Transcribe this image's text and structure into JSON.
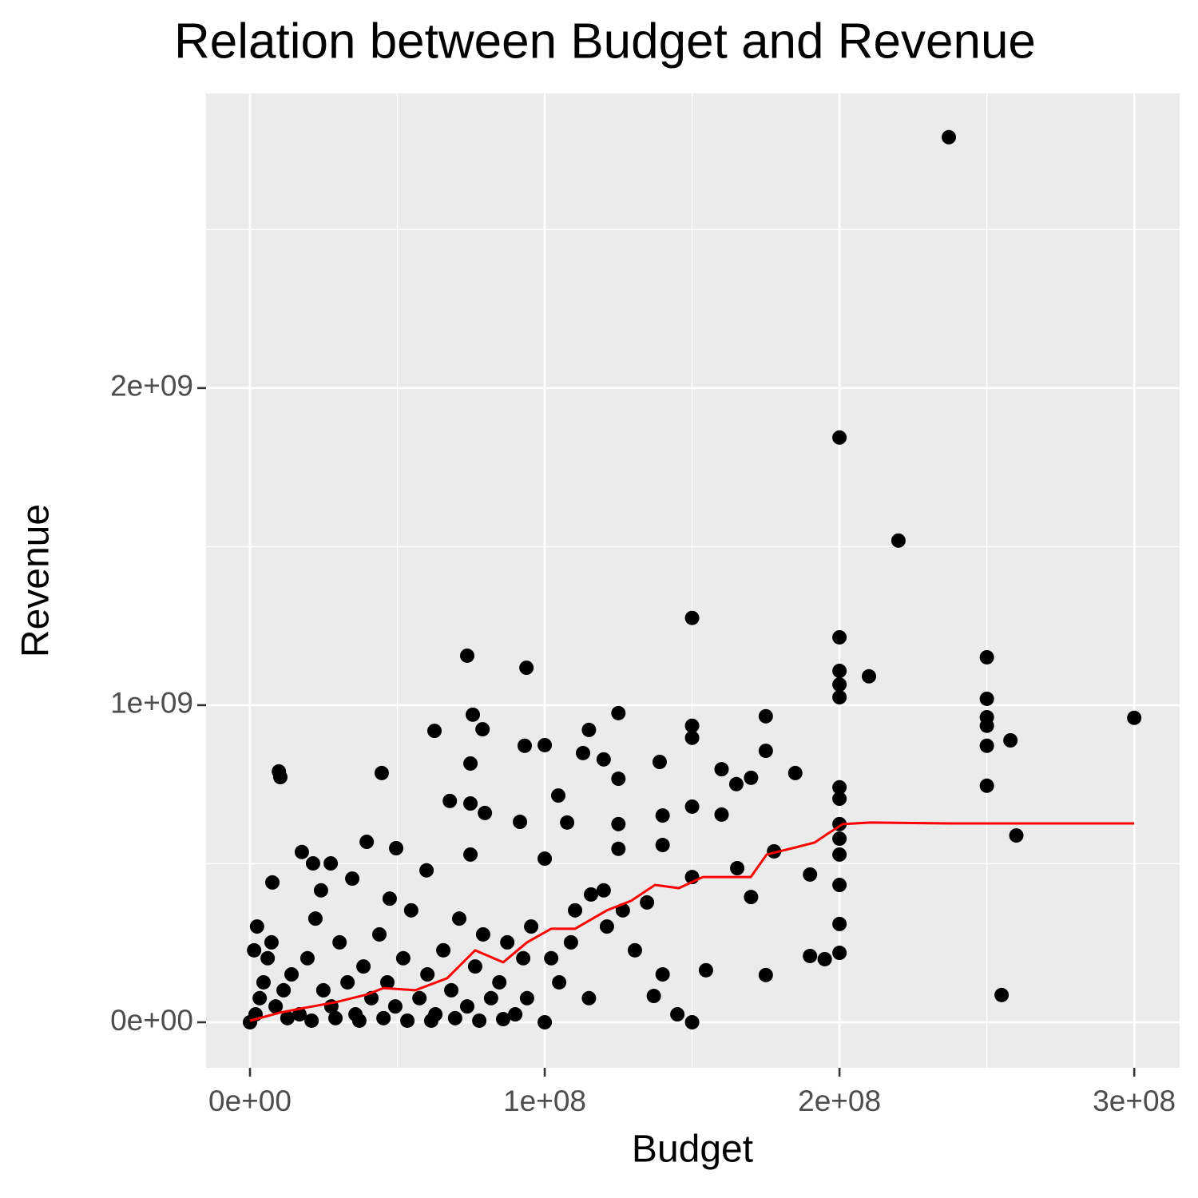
{
  "chart_data": {
    "type": "scatter",
    "title": "Relation between Budget and Revenue",
    "x_label": "Budget",
    "y_label": "Revenue",
    "xlim": [
      -14900000.0,
      315400000.0
    ],
    "ylim": [
      -143600000.0,
      2929000000.0
    ],
    "xticks": [
      {
        "value": 0,
        "label": "0e+00"
      },
      {
        "value": 100000000,
        "label": "1e+08"
      },
      {
        "value": 200000000,
        "label": "2e+08"
      },
      {
        "value": 300000000,
        "label": "3e+08"
      }
    ],
    "yticks": [
      {
        "value": 0,
        "label": "0e+00"
      },
      {
        "value": 1000000000,
        "label": "1e+09"
      },
      {
        "value": 2000000000,
        "label": "2e+09"
      }
    ],
    "x_minor_grid": [
      50000000,
      150000000,
      250000000
    ],
    "y_minor_grid": [
      500000000,
      1500000000,
      2500000000
    ],
    "grid": true,
    "panel_color": "#ebebeb",
    "points": {
      "color": "#000000",
      "x": [
        237100000.0,
        200000000.0,
        220000000.0,
        150000000.0,
        200000000.0,
        73700000.0,
        93800000.0,
        250000000.0,
        210000000.0,
        200000000.0,
        200000000.0,
        200000000.0,
        250000000.0,
        300000000.0,
        250000000.0,
        250000000.0,
        250000000.0,
        258000000.0,
        250000000.0,
        260000000.0,
        255000000.0,
        125000000.0,
        75600000.0,
        175000000.0,
        62600000.0,
        78900000.0,
        115000000.0,
        150000000.0,
        150000000.0,
        100000000.0,
        93200000.0,
        113000000.0,
        120000000.0,
        139000000.0,
        74800000.0,
        9800000.0,
        10300000.0,
        44700000.0,
        160000000.0,
        175000000.0,
        185000000.0,
        125000000.0,
        170000000.0,
        165000000.0,
        200000000.0,
        200000000.0,
        104600000.0,
        67800000.0,
        74800000.0,
        79700000.0,
        91600000.0,
        107600000.0,
        125000000.0,
        140000000.0,
        150000000.0,
        160000000.0,
        200000000.0,
        200000000.0,
        200000000.0,
        39600000.0,
        49600000.0,
        17600000.0,
        21400000.0,
        27400000.0,
        74800000.0,
        59900000.0,
        100000000.0,
        125000000.0,
        140000000.0,
        165300000.0,
        177800000.0,
        190000000.0,
        200000000.0,
        7600000.0,
        24100000.0,
        34700000.0,
        47400000.0,
        120000000.0,
        150000000.0,
        170000000.0,
        200000000.0,
        200000000.0,
        190000000.0,
        195000000.0,
        175000000.0,
        154700000.0,
        140000000.0,
        150000000.0,
        145000000.0,
        115000000.0,
        100000000.0,
        137000000.0,
        1900000.0,
        3300000.0,
        4600000.0,
        6000000.0,
        7300000.0,
        8700000.0,
        11400000.0,
        14100000.0,
        16800000.0,
        19500000.0,
        22200000.0,
        24900000.0,
        27600000.0,
        30400000.0,
        33100000.0,
        35800000.0,
        38500000.0,
        41200000.0,
        43900000.0,
        46600000.0,
        49300000.0,
        52000000.0,
        54700000.0,
        57500000.0,
        60200000.0,
        62900000.0,
        65600000.0,
        68300000.0,
        71000000.0,
        73700000.0,
        76400000.0,
        79100000.0,
        81800000.0,
        84600000.0,
        87300000.0,
        90000000.0,
        92700000.0,
        95400000.0,
        0,
        1400000.0,
        2400000.0,
        12700000.0,
        20900000.0,
        29000000.0,
        37100000.0,
        45300000.0,
        53400000.0,
        61500000.0,
        69600000.0,
        77800000.0,
        85900000.0,
        94000000.0,
        102200000.0,
        104900000.0,
        108900000.0,
        110300000.0,
        115700000.0,
        121100000.0,
        126500000.0,
        130600000.0,
        134700000.0
      ],
      "y": [
        2791000000.0,
        1844000000.0,
        1519000000.0,
        1275000000.0,
        1214000000.0,
        1156000000.0,
        1118000000.0,
        1151000000.0,
        1091000000.0,
        1108000000.0,
        1065000000.0,
        1025000000.0,
        1020000000.0,
        960000000.0,
        962000000.0,
        935000000.0,
        872000000.0,
        889000000.0,
        746000000.0,
        589000000.0,
        86000000.0,
        975000000.0,
        970000000.0,
        965000000.0,
        919000000.0,
        924000000.0,
        922000000.0,
        935000000.0,
        897000000.0,
        874000000.0,
        872000000.0,
        849000000.0,
        829000000.0,
        821000000.0,
        816000000.0,
        791000000.0,
        773000000.0,
        786000000.0,
        798000000.0,
        856000000.0,
        786000000.0,
        768000000.0,
        771000000.0,
        751000000.0,
        741000000.0,
        705000000.0,
        715000000.0,
        698000000.0,
        690000000.0,
        660000000.0,
        632000000.0,
        630000000.0,
        625000000.0,
        652000000.0,
        680000000.0,
        655000000.0,
        625000000.0,
        579000000.0,
        529000000.0,
        569000000.0,
        549000000.0,
        537000000.0,
        501000000.0,
        501000000.0,
        529000000.0,
        479000000.0,
        516000000.0,
        547000000.0,
        559000000.0,
        486000000.0,
        539000000.0,
        466000000.0,
        433000000.0,
        441000000.0,
        416000000.0,
        453000000.0,
        390000000.0,
        416000000.0,
        458000000.0,
        395000000.0,
        310000000.0,
        219000000.0,
        209000000.0,
        199000000.0,
        149000000.0,
        164000000.0,
        151000000.0,
        0,
        25000000.0,
        76000000.0,
        0,
        83000000.0,
        25000000.0,
        76000000.0,
        126000000.0,
        202000000.0,
        252000000.0,
        50000000.0,
        101000000.0,
        151000000.0,
        25000000.0,
        202000000.0,
        327000000.0,
        101000000.0,
        50000000.0,
        252000000.0,
        126000000.0,
        25000000.0,
        176000000.0,
        76000000.0,
        277000000.0,
        126000000.0,
        50000000.0,
        202000000.0,
        353000000.0,
        76000000.0,
        151000000.0,
        25000000.0,
        227000000.0,
        101000000.0,
        327000000.0,
        50000000.0,
        176000000.0,
        277000000.0,
        76000000.0,
        126000000.0,
        252000000.0,
        25000000.0,
        202000000.0,
        302000000.0,
        0,
        227000000.0,
        302000000.0,
        13000000.0,
        5000000.0,
        13000000.0,
        5000000.0,
        13000000.0,
        5000000.0,
        5000000.0,
        13000000.0,
        5000000.0,
        10000000.0,
        76000000.0,
        202000000.0,
        126000000.0,
        252000000.0,
        353000000.0,
        403000000.0,
        302000000.0,
        353000000.0,
        227000000.0,
        378000000.0
      ]
    },
    "trend": {
      "color": "#ff0000",
      "x": [
        0,
        10000000.0,
        18200000.0,
        29000000.0,
        39800000.0,
        45300000.0,
        56100000.0,
        66900000.0,
        76400000.0,
        85900000.0,
        94000000.0,
        102200000.0,
        110300000.0,
        121100000.0,
        129300000.0,
        137400000.0,
        145500000.0,
        153700000.0,
        161800000.0,
        169900000.0,
        175300000.0,
        186200000.0,
        191600000.0,
        195600000.0,
        201100000.0,
        210500000.0,
        237700000.0,
        300000000.0
      ],
      "y": [
        5000000.0,
        30000000.0,
        45000000.0,
        63000000.0,
        88000000.0,
        108000000.0,
        101000000.0,
        139000000.0,
        227000000.0,
        189000000.0,
        252000000.0,
        295000000.0,
        295000000.0,
        353000000.0,
        383000000.0,
        433000000.0,
        423000000.0,
        458000000.0,
        458000000.0,
        458000000.0,
        529000000.0,
        554000000.0,
        567000000.0,
        592000000.0,
        625000000.0,
        630000000.0,
        627000000.0,
        627000000.0
      ]
    }
  }
}
